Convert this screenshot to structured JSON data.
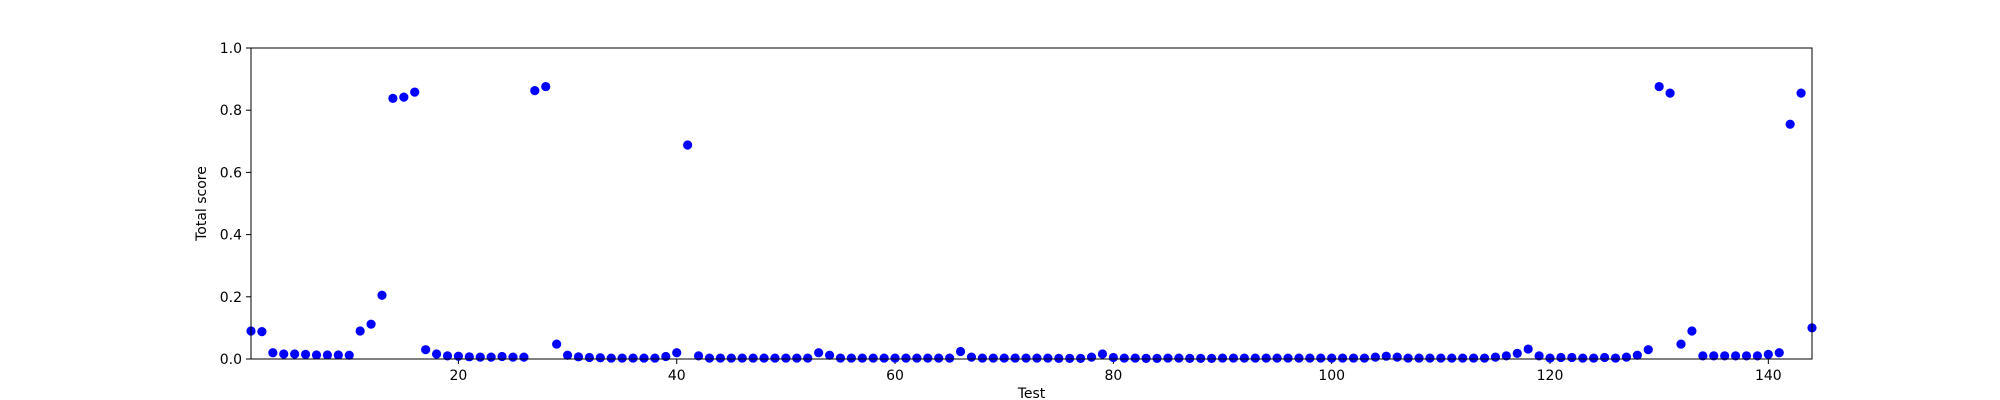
{
  "chart_data": {
    "type": "scatter",
    "xlabel": "Test",
    "ylabel": "Total score",
    "xlim": [
      1,
      144
    ],
    "ylim": [
      0.0,
      1.0
    ],
    "xticks": [
      20,
      40,
      60,
      80,
      100,
      120,
      140
    ],
    "yticks": [
      0.0,
      0.2,
      0.4,
      0.6,
      0.8,
      1.0
    ],
    "xtick_labels": [
      "20",
      "40",
      "60",
      "80",
      "100",
      "120",
      "140"
    ],
    "ytick_labels": [
      "0.0",
      "0.2",
      "0.4",
      "0.6",
      "0.8",
      "1.0"
    ],
    "grid": false,
    "marker_color": "#0000ff",
    "x": [
      1,
      2,
      3,
      4,
      5,
      6,
      7,
      8,
      9,
      10,
      11,
      12,
      13,
      14,
      15,
      16,
      17,
      18,
      19,
      20,
      21,
      22,
      23,
      24,
      25,
      26,
      27,
      28,
      29,
      30,
      31,
      32,
      33,
      34,
      35,
      36,
      37,
      38,
      39,
      40,
      41,
      42,
      43,
      44,
      45,
      46,
      47,
      48,
      49,
      50,
      51,
      52,
      53,
      54,
      55,
      56,
      57,
      58,
      59,
      60,
      61,
      62,
      63,
      64,
      65,
      66,
      67,
      68,
      69,
      70,
      71,
      72,
      73,
      74,
      75,
      76,
      77,
      78,
      79,
      80,
      81,
      82,
      83,
      84,
      85,
      86,
      87,
      88,
      89,
      90,
      91,
      92,
      93,
      94,
      95,
      96,
      97,
      98,
      99,
      100,
      101,
      102,
      103,
      104,
      105,
      106,
      107,
      108,
      109,
      110,
      111,
      112,
      113,
      114,
      115,
      116,
      117,
      118,
      119,
      120,
      121,
      122,
      123,
      124,
      125,
      126,
      127,
      128,
      129,
      130,
      131,
      132,
      133,
      134,
      135,
      136,
      137,
      138,
      139,
      140,
      141,
      142,
      143,
      144
    ],
    "y": [
      0.09,
      0.088,
      0.02,
      0.016,
      0.016,
      0.015,
      0.013,
      0.013,
      0.013,
      0.012,
      0.09,
      0.112,
      0.205,
      0.838,
      0.842,
      0.858,
      0.03,
      0.016,
      0.01,
      0.009,
      0.007,
      0.006,
      0.006,
      0.008,
      0.006,
      0.006,
      0.863,
      0.876,
      0.048,
      0.012,
      0.007,
      0.005,
      0.004,
      0.003,
      0.003,
      0.003,
      0.003,
      0.003,
      0.008,
      0.02,
      0.688,
      0.01,
      0.003,
      0.003,
      0.003,
      0.003,
      0.003,
      0.003,
      0.003,
      0.003,
      0.003,
      0.003,
      0.02,
      0.012,
      0.003,
      0.003,
      0.003,
      0.003,
      0.003,
      0.003,
      0.003,
      0.003,
      0.003,
      0.003,
      0.003,
      0.024,
      0.006,
      0.003,
      0.003,
      0.003,
      0.003,
      0.003,
      0.003,
      0.003,
      0.002,
      0.002,
      0.002,
      0.006,
      0.016,
      0.005,
      0.003,
      0.003,
      0.002,
      0.002,
      0.003,
      0.003,
      0.002,
      0.002,
      0.002,
      0.003,
      0.003,
      0.003,
      0.003,
      0.003,
      0.003,
      0.003,
      0.003,
      0.003,
      0.003,
      0.003,
      0.003,
      0.003,
      0.003,
      0.006,
      0.009,
      0.006,
      0.003,
      0.003,
      0.003,
      0.003,
      0.003,
      0.003,
      0.003,
      0.003,
      0.006,
      0.01,
      0.018,
      0.032,
      0.01,
      0.003,
      0.005,
      0.005,
      0.003,
      0.003,
      0.005,
      0.003,
      0.006,
      0.012,
      0.03,
      0.876,
      0.855,
      0.048,
      0.09,
      0.01,
      0.01,
      0.01,
      0.01,
      0.01,
      0.01,
      0.015,
      0.02,
      0.755,
      0.855,
      0.1
    ]
  }
}
